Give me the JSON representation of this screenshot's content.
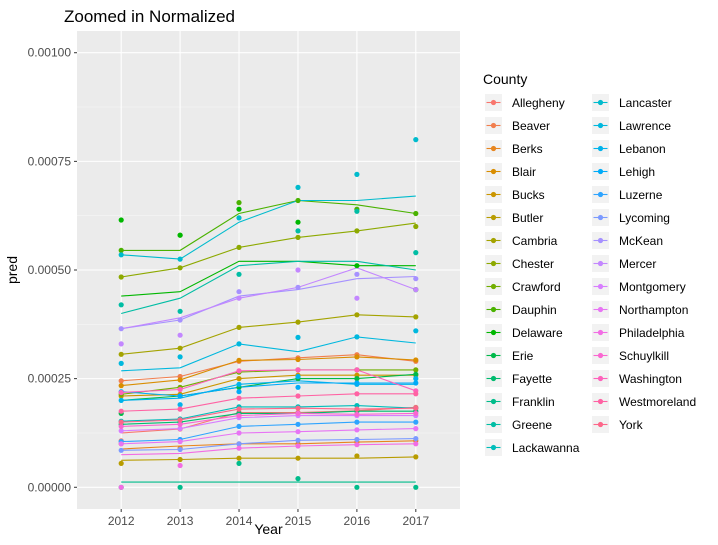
{
  "chart_data": {
    "type": "line",
    "title": "Zoomed in Normalized",
    "xlabel": "Year",
    "ylabel": "pred",
    "x": [
      2012,
      2013,
      2014,
      2015,
      2016,
      2017
    ],
    "x_ticks": [
      "2012",
      "2013",
      "2014",
      "2015",
      "2016",
      "2017"
    ],
    "xlim": [
      2011.25,
      2017.75
    ],
    "ylim": [
      -5e-05,
      0.00105
    ],
    "y_ticks": [
      0,
      0.00025,
      0.0005,
      0.00075,
      0.001
    ],
    "y_tick_labels": [
      "0.00000",
      "0.00025",
      "0.00050",
      "0.00075",
      "0.00100"
    ],
    "grid": true,
    "legend_title": "County",
    "legend_position": "right",
    "series": [
      {
        "name": "Allegheny",
        "color": "#F8766D",
        "line": [
          0.000125,
          0.000134,
          0.000172,
          0.000172,
          0.000176,
          0.000184
        ],
        "points": [
          0.000107,
          0.000134,
          0.000172,
          0.000172,
          0.000176,
          0.000184
        ]
      },
      {
        "name": "Beaver",
        "color": "#F17E4E",
        "line": [
          0.000245,
          0.000255,
          0.00029,
          0.000298,
          0.000305,
          0.00029
        ],
        "points": [
          0.000245,
          0.000255,
          0.00029,
          0.000298,
          0.000305,
          0.00029
        ]
      },
      {
        "name": "Berks",
        "color": "#E7851E",
        "line": [
          8.8e-05,
          9.5e-05,
          0.0001,
          0.0001,
          0.000104,
          0.000107
        ],
        "points": [
          0.0001,
          9e-05,
          0.0001,
          0.0001,
          0.000104,
          0.000107
        ]
      },
      {
        "name": "Blair",
        "color": "#D98D00",
        "line": [
          0.000234,
          0.000247,
          0.000292,
          0.000294,
          0.0003,
          0.000293
        ],
        "points": [
          0.000234,
          0.000247,
          0.000292,
          0.000294,
          0.0003,
          0.000293
        ]
      },
      {
        "name": "Bucks",
        "color": "#CA9500",
        "line": [
          0.00021,
          0.000214,
          0.00025,
          0.000258,
          0.000258,
          0.000258
        ],
        "points": [
          0.00021,
          0.000214,
          0.00025,
          0.000258,
          0.000258,
          0.000258
        ]
      },
      {
        "name": "Butler",
        "color": "#B89C00",
        "line": [
          6.2e-05,
          6.4e-05,
          6.7e-05,
          6.7e-05,
          6.7e-05,
          7e-05
        ],
        "points": [
          5.5e-05,
          6.4e-05,
          6.7e-05,
          6.7e-05,
          7.2e-05,
          7e-05
        ]
      },
      {
        "name": "Cambria",
        "color": "#A4A300",
        "line": [
          0.000306,
          0.00032,
          0.000368,
          0.00038,
          0.000397,
          0.000392
        ],
        "points": [
          0.000306,
          0.00032,
          0.000368,
          0.00038,
          0.000397,
          0.000392
        ]
      },
      {
        "name": "Chester",
        "color": "#8DA900",
        "line": [
          0.000484,
          0.000505,
          0.000552,
          0.000575,
          0.00059,
          0.000608
        ],
        "points": [
          0.000484,
          0.000505,
          0.000552,
          0.000575,
          0.00059,
          0.0006
        ]
      },
      {
        "name": "Crawford",
        "color": "#71AE00",
        "line": [
          0.000214,
          0.00023,
          0.000265,
          0.00027,
          0.00027,
          0.00027
        ],
        "points": [
          0.000214,
          0.00023,
          0.000265,
          0.00027,
          0.00027,
          0.00027
        ]
      },
      {
        "name": "Dauphin",
        "color": "#4AB200",
        "line": [
          0.000545,
          0.000545,
          0.00063,
          0.00066,
          0.00065,
          0.00063
        ],
        "points": [
          0.000545,
          0.00058,
          0.000655,
          0.00066,
          0.00064,
          0.00063
        ]
      },
      {
        "name": "Delaware",
        "color": "#00B700",
        "line": [
          0.00044,
          0.00045,
          0.00052,
          0.00052,
          0.00051,
          0.00051
        ],
        "points": [
          0.000615,
          0.00058,
          0.00064,
          0.00061,
          0.00051,
          0.000455
        ]
      },
      {
        "name": "Erie",
        "color": "#00B94A",
        "line": [
          0.0002,
          0.00021,
          0.00023,
          0.00025,
          0.00025,
          0.00026
        ],
        "points": [
          0.00017,
          0.00021,
          0.00023,
          0.00025,
          0.00025,
          0.00026
        ]
      },
      {
        "name": "Fayette",
        "color": "#00BB6E",
        "line": [
          0.000145,
          0.00015,
          0.00017,
          0.00017,
          0.000175,
          0.000175
        ],
        "points": [
          0.000145,
          0.00015,
          0.00017,
          0.00017,
          0.000175,
          0.000175
        ]
      },
      {
        "name": "Franklin",
        "color": "#00BC8B",
        "line": [
          1.2e-05,
          1.2e-05,
          1.2e-05,
          1.2e-05,
          1.2e-05,
          1.2e-05
        ],
        "points": [
          0.0,
          0.0,
          5.5e-05,
          2e-05,
          0.0,
          0.0
        ]
      },
      {
        "name": "Greene",
        "color": "#00BDA4",
        "line": [
          0.0004,
          0.000435,
          0.00051,
          0.00052,
          0.00052,
          0.0005
        ],
        "points": [
          0.00042,
          0.000405,
          0.00049,
          0.00059,
          0.000635,
          0.00054
        ]
      },
      {
        "name": "Lackawanna",
        "color": "#00BDBA",
        "line": [
          0.000152,
          0.000157,
          0.000185,
          0.000185,
          0.000188,
          0.000182
        ],
        "points": [
          0.000152,
          0.000157,
          0.000185,
          0.000185,
          0.000188,
          0.000182
        ]
      },
      {
        "name": "Lancaster",
        "color": "#00BBCD",
        "line": [
          0.000535,
          0.000525,
          0.00061,
          0.00066,
          0.00066,
          0.00067
        ],
        "points": [
          0.000535,
          0.000525,
          0.00062,
          0.00069,
          0.00072,
          0.0008
        ]
      },
      {
        "name": "Lawrence",
        "color": "#00B8DE",
        "line": [
          0.000268,
          0.000275,
          0.00033,
          0.000312,
          0.000346,
          0.000332
        ],
        "points": [
          0.000285,
          0.0003,
          0.00033,
          0.000345,
          0.000346,
          0.00036
        ]
      },
      {
        "name": "Lebanon",
        "color": "#00B3EC",
        "line": [
          0.0002,
          0.000205,
          0.000237,
          0.000245,
          0.000237,
          0.000237
        ],
        "points": [
          0.0002,
          0.00019,
          0.000237,
          0.000255,
          0.000237,
          0.00025
        ]
      },
      {
        "name": "Lehigh",
        "color": "#00ABF8",
        "line": [
          0.00022,
          0.00021,
          0.00023,
          0.00024,
          0.00024,
          0.00024
        ],
        "points": [
          0.00022,
          0.00021,
          0.00022,
          0.00023,
          0.00024,
          0.00024
        ]
      },
      {
        "name": "Luzerne",
        "color": "#2EA4FF",
        "line": [
          0.000105,
          0.00011,
          0.00014,
          0.000145,
          0.00015,
          0.00015
        ],
        "points": [
          0.000105,
          0.00011,
          0.00014,
          0.000145,
          0.00015,
          0.00015
        ]
      },
      {
        "name": "Lycoming",
        "color": "#7C9AFF",
        "line": [
          8.5e-05,
          8.7e-05,
          0.0001,
          0.000108,
          0.00011,
          0.000112
        ],
        "points": [
          8.5e-05,
          8.7e-05,
          0.0001,
          0.000108,
          0.00011,
          0.000112
        ]
      },
      {
        "name": "McKean",
        "color": "#A691FF",
        "line": [
          0.000365,
          0.000385,
          0.00044,
          0.000455,
          0.00048,
          0.000485
        ],
        "points": [
          0.000365,
          0.000385,
          0.00045,
          0.00046,
          0.00049,
          0.00048
        ]
      },
      {
        "name": "Mercer",
        "color": "#C387FF",
        "line": [
          0.000365,
          0.00039,
          0.000435,
          0.00046,
          0.000505,
          0.000455
        ],
        "points": [
          0.00033,
          0.00035,
          0.000435,
          0.0005,
          0.000435,
          0.000455
        ]
      },
      {
        "name": "Montgomery",
        "color": "#D87EFF",
        "line": [
          0.00013,
          0.000135,
          0.00016,
          0.000165,
          0.000165,
          0.000165
        ],
        "points": [
          0.00013,
          0.000135,
          0.00016,
          0.000165,
          0.000165,
          0.000165
        ]
      },
      {
        "name": "Northampton",
        "color": "#E775F4",
        "line": [
          0.0001,
          0.000105,
          0.000125,
          0.000128,
          0.000132,
          0.000135
        ],
        "points": [
          0.0001,
          0.000105,
          0.000125,
          0.000128,
          0.000132,
          0.000135
        ]
      },
      {
        "name": "Philadelphia",
        "color": "#F26DE4",
        "line": [
          7.5e-05,
          7.8e-05,
          9e-05,
          9.5e-05,
          9.8e-05,
          0.0001
        ],
        "points": [
          0.0,
          5e-05,
          9e-05,
          9.5e-05,
          9.8e-05,
          0.0001
        ]
      },
      {
        "name": "Schuylkill",
        "color": "#FA67D1",
        "line": [
          0.00014,
          0.000145,
          0.000165,
          0.00017,
          0.000168,
          0.00017
        ],
        "points": [
          0.00014,
          0.000145,
          0.000165,
          0.00017,
          0.000168,
          0.00017
        ]
      },
      {
        "name": "Washington",
        "color": "#FE62BB",
        "line": [
          0.000218,
          0.000225,
          0.000268,
          0.00027,
          0.00027,
          0.000222
        ],
        "points": [
          0.000218,
          0.000225,
          0.000268,
          0.00027,
          0.00027,
          0.000222
        ]
      },
      {
        "name": "Westmoreland",
        "color": "#FF62A3",
        "line": [
          0.000175,
          0.00018,
          0.000205,
          0.00021,
          0.000215,
          0.000215
        ],
        "points": [
          0.000175,
          0.00018,
          0.000205,
          0.00021,
          0.000215,
          0.000215
        ]
      },
      {
        "name": "York",
        "color": "#FD6689",
        "line": [
          0.00015,
          0.000155,
          0.00018,
          0.000182,
          0.00018,
          0.000182
        ],
        "points": [
          0.00015,
          0.000155,
          0.00018,
          0.000182,
          0.00018,
          0.000182
        ]
      }
    ]
  }
}
